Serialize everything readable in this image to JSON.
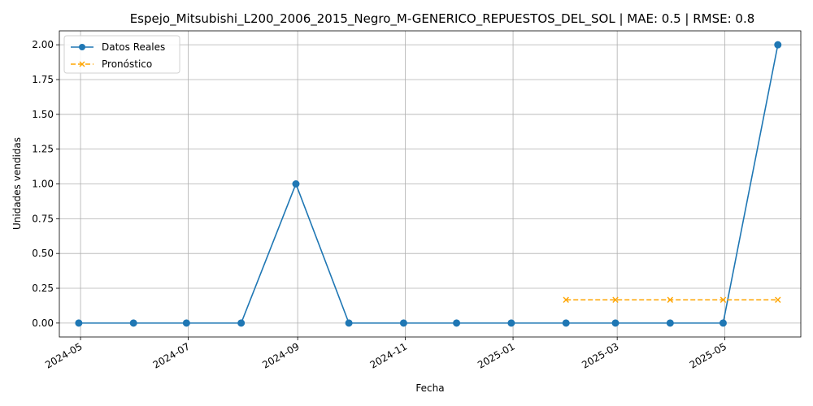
{
  "chart_data": {
    "type": "line",
    "title": "Espejo_Mitsubishi_L200_2006_2015_Negro_M-GENERICO_REPUESTOS_DEL_SOL | MAE: 0.5 | RMSE: 0.8",
    "xlabel": "Fecha",
    "ylabel": "Unidades vendidas",
    "x_ticks": [
      "2024-05",
      "2024-07",
      "2024-09",
      "2024-11",
      "2025-01",
      "2025-03",
      "2025-05"
    ],
    "y_ticks": [
      "0.00",
      "0.25",
      "0.50",
      "0.75",
      "1.00",
      "1.25",
      "1.50",
      "1.75",
      "2.00"
    ],
    "ylim": [
      -0.1,
      2.1
    ],
    "xlim": [
      "2024-04-19",
      "2025-06-13"
    ],
    "grid": true,
    "legend_position": "top-left",
    "series": [
      {
        "name": "Datos Reales",
        "color": "#1f77b4",
        "style": "solid",
        "marker": "circle",
        "x": [
          "2024-04-30",
          "2024-05-31",
          "2024-06-30",
          "2024-07-31",
          "2024-08-31",
          "2024-09-30",
          "2024-10-31",
          "2024-11-30",
          "2024-12-31",
          "2025-01-31",
          "2025-02-28",
          "2025-03-31",
          "2025-04-30",
          "2025-05-31"
        ],
        "values": [
          0,
          0,
          0,
          0,
          1,
          0,
          0,
          0,
          0,
          0,
          0,
          0,
          0,
          2
        ]
      },
      {
        "name": "Pronóstico",
        "color": "#ffa500",
        "style": "dashed",
        "marker": "x",
        "x": [
          "2025-01-31",
          "2025-02-28",
          "2025-03-31",
          "2025-04-30",
          "2025-05-31"
        ],
        "values": [
          0.167,
          0.167,
          0.167,
          0.167,
          0.167
        ]
      }
    ]
  }
}
